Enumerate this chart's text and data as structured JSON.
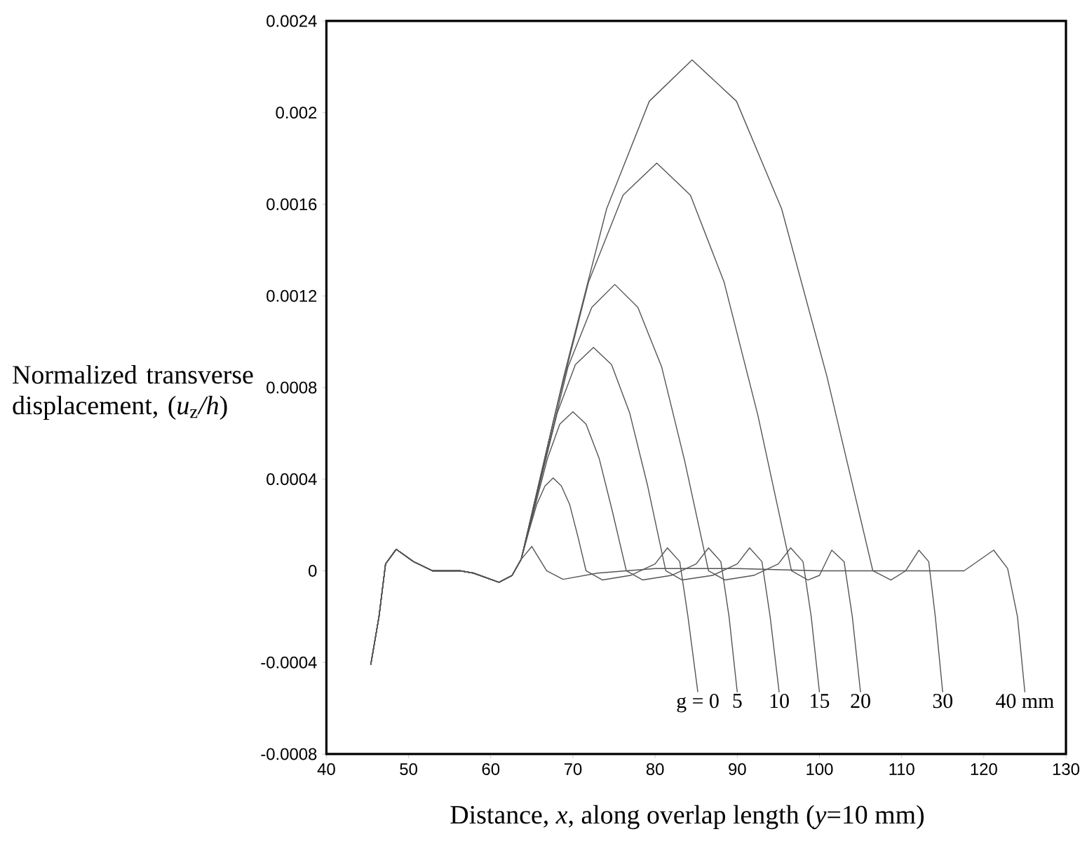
{
  "chart_data": {
    "type": "line",
    "xlabel": "Distance, *x*, along overlap length (*y*=10 mm)",
    "ylabel": "Normalized transverse displacement, (*u*$_{z}$*/h*)",
    "xlim": [
      40,
      130
    ],
    "ylim": [
      -0.0008,
      0.0024
    ],
    "xticks": [
      40,
      50,
      60,
      70,
      80,
      90,
      100,
      110,
      120,
      130
    ],
    "yticks": [
      -0.0008,
      -0.0004,
      0,
      0.0004,
      0.0008,
      0.0012,
      0.0016,
      0.002,
      0.0024
    ],
    "line_style": "solid",
    "series": [
      {
        "name": "g = 0",
        "color": "#555555",
        "x": [
          45.4,
          46.4,
          47.2,
          48.5,
          50.6,
          52.9,
          56.3,
          57.9,
          61.0,
          62.6,
          63.7,
          64.7,
          65.6,
          66.6,
          67.6,
          68.6,
          69.6,
          70.6,
          71.6,
          73.6,
          77,
          80,
          81.5,
          83,
          84,
          85.2
        ],
        "values": [
          -0.00041,
          -0.0002,
          3e-05,
          9.4e-05,
          4e-05,
          0.0,
          0.0,
          -1e-05,
          -5e-05,
          -2e-05,
          5e-05,
          0.00018,
          0.00029,
          0.00037,
          0.000405,
          0.00037,
          0.00029,
          0.00015,
          0.0,
          -4e-05,
          -2e-05,
          3e-05,
          0.0001,
          4e-05,
          -0.0002,
          -0.00053
        ]
      },
      {
        "name": "5",
        "color": "#555555",
        "x": [
          45.4,
          46.4,
          47.2,
          48.5,
          50.6,
          52.9,
          56.3,
          57.9,
          61.0,
          62.6,
          63.7,
          65.3,
          66.9,
          68.4,
          70.0,
          71.6,
          73.2,
          74.8,
          76.5,
          78.5,
          82,
          85,
          86.5,
          88,
          89,
          90
        ],
        "values": [
          -0.00041,
          -0.0002,
          3e-05,
          9.4e-05,
          4e-05,
          0.0,
          0.0,
          -1e-05,
          -5e-05,
          -2e-05,
          5e-05,
          0.00027,
          0.00049,
          0.00064,
          0.000694,
          0.00064,
          0.00049,
          0.00026,
          0.0,
          -4e-05,
          -2e-05,
          3e-05,
          0.0001,
          4e-05,
          -0.0002,
          -0.00053
        ]
      },
      {
        "name": "10",
        "color": "#555555",
        "x": [
          45.4,
          46.4,
          47.2,
          48.5,
          50.6,
          52.9,
          56.3,
          57.9,
          61.0,
          62.6,
          63.7,
          65.9,
          68.1,
          70.3,
          72.5,
          74.7,
          76.9,
          79.1,
          81.3,
          83.3,
          87,
          90,
          91.5,
          93,
          94,
          95.1
        ],
        "values": [
          -0.00041,
          -0.0002,
          3e-05,
          9.4e-05,
          4e-05,
          0.0,
          0.0,
          -1e-05,
          -5e-05,
          -2e-05,
          5e-05,
          0.00037,
          0.00069,
          0.0009,
          0.000975,
          0.0009,
          0.00069,
          0.00037,
          0.0,
          -4e-05,
          -2e-05,
          3e-05,
          0.0001,
          4e-05,
          -0.0002,
          -0.00053
        ]
      },
      {
        "name": "15",
        "color": "#555555",
        "x": [
          45.4,
          46.4,
          47.2,
          48.5,
          50.6,
          52.9,
          56.3,
          57.9,
          61.0,
          62.6,
          63.7,
          66.6,
          69.4,
          72.3,
          75.1,
          77.9,
          80.8,
          83.6,
          86.5,
          88.5,
          92,
          95,
          96.5,
          98,
          99,
          100
        ],
        "values": [
          -0.00041,
          -0.0002,
          3e-05,
          9.4e-05,
          4e-05,
          0.0,
          0.0,
          -1e-05,
          -5e-05,
          -2e-05,
          5e-05,
          0.00048,
          0.00089,
          0.00115,
          0.00125,
          0.00115,
          0.00089,
          0.00048,
          0.0,
          -4e-05,
          -2e-05,
          3e-05,
          0.0001,
          4e-05,
          -0.0002,
          -0.00053
        ]
      },
      {
        "name": "20",
        "color": "#555555",
        "x": [
          45.4,
          46.4,
          47.2,
          48.5,
          50.6,
          52.9,
          56.3,
          57.9,
          61.0,
          62.6,
          63.7,
          67.8,
          71.9,
          76.1,
          80.2,
          84.3,
          88.4,
          92.5,
          96.6,
          98.6,
          100,
          101.5,
          103,
          104,
          105
        ],
        "values": [
          -0.00041,
          -0.0002,
          3e-05,
          9.4e-05,
          4e-05,
          0.0,
          0.0,
          -1e-05,
          -5e-05,
          -2e-05,
          5e-05,
          0.00068,
          0.00126,
          0.00164,
          0.00178,
          0.00164,
          0.00126,
          0.00068,
          0.0,
          -4e-05,
          -2e-05,
          9e-05,
          4e-05,
          -0.0002,
          -0.00053
        ]
      },
      {
        "name": "30",
        "color": "#555555",
        "x": [
          45.4,
          46.4,
          47.2,
          48.5,
          50.6,
          52.9,
          56.3,
          57.9,
          61.0,
          62.6,
          63.7,
          68.9,
          74.1,
          79.3,
          84.5,
          89.9,
          95.4,
          100.9,
          106.5,
          108.7,
          110.5,
          112.1,
          113.3,
          114.1,
          115
        ],
        "values": [
          -0.00041,
          -0.0002,
          3e-05,
          9.4e-05,
          4e-05,
          0.0,
          0.0,
          -1e-05,
          -5e-05,
          -2e-05,
          5e-05,
          0.00085,
          0.00158,
          0.00205,
          0.00223,
          0.00205,
          0.00158,
          0.00085,
          0.0,
          -4e-05,
          0.0,
          9e-05,
          4e-05,
          -0.0002,
          -0.00053
        ]
      },
      {
        "name": "40 mm",
        "color": "#555555",
        "x": [
          45.4,
          46.4,
          47.2,
          48.5,
          50.6,
          52.9,
          56.3,
          57.9,
          61.0,
          62.6,
          63.7,
          65.0,
          66.8,
          68.8,
          73,
          80,
          90,
          100,
          110,
          117.6,
          121.2,
          122.9,
          124.1,
          125
        ],
        "values": [
          -0.00041,
          -0.0002,
          3e-05,
          9.4e-05,
          4e-05,
          0.0,
          0.0,
          -1e-05,
          -5e-05,
          -2e-05,
          5e-05,
          0.000106,
          0.0,
          -3.7e-05,
          -1e-05,
          1e-05,
          1e-05,
          0.0,
          0.0,
          0.0,
          9e-05,
          1e-05,
          -0.0002,
          -0.00053
        ]
      }
    ]
  }
}
